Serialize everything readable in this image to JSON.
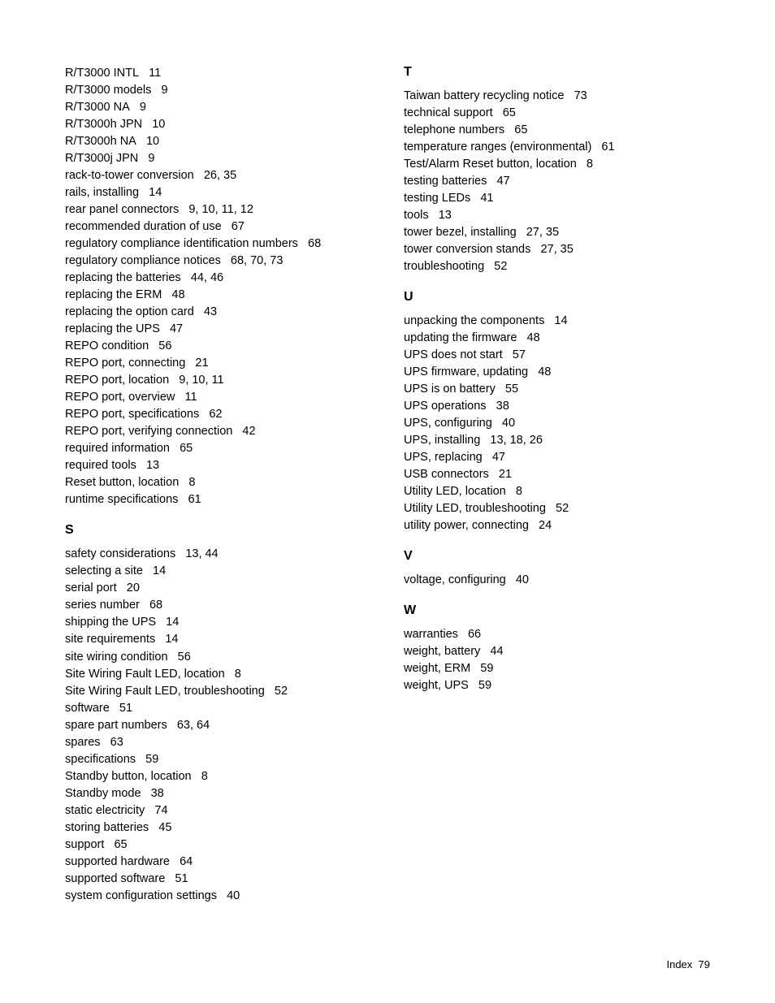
{
  "left": {
    "r_entries": [
      {
        "term": "R/T3000 INTL",
        "pages": "11"
      },
      {
        "term": "R/T3000 models",
        "pages": "9"
      },
      {
        "term": "R/T3000 NA",
        "pages": "9"
      },
      {
        "term": "R/T3000h JPN",
        "pages": "10"
      },
      {
        "term": "R/T3000h NA",
        "pages": "10"
      },
      {
        "term": "R/T3000j JPN",
        "pages": "9"
      },
      {
        "term": "rack-to-tower conversion",
        "pages": "26, 35"
      },
      {
        "term": "rails, installing",
        "pages": "14"
      },
      {
        "term": "rear panel connectors",
        "pages": "9, 10, 11, 12"
      },
      {
        "term": "recommended duration of use",
        "pages": "67"
      },
      {
        "term": "regulatory compliance identification numbers",
        "pages": "68"
      },
      {
        "term": "regulatory compliance notices",
        "pages": "68, 70, 73"
      },
      {
        "term": "replacing the batteries",
        "pages": "44, 46"
      },
      {
        "term": "replacing the ERM",
        "pages": "48"
      },
      {
        "term": "replacing the option card",
        "pages": "43"
      },
      {
        "term": "replacing the UPS",
        "pages": "47"
      },
      {
        "term": "REPO condition",
        "pages": "56"
      },
      {
        "term": "REPO port, connecting",
        "pages": "21"
      },
      {
        "term": "REPO port, location",
        "pages": "9, 10, 11"
      },
      {
        "term": "REPO port, overview",
        "pages": "11"
      },
      {
        "term": "REPO port, specifications",
        "pages": "62"
      },
      {
        "term": "REPO port, verifying connection",
        "pages": "42"
      },
      {
        "term": "required information",
        "pages": "65"
      },
      {
        "term": "required tools",
        "pages": "13"
      },
      {
        "term": "Reset button, location",
        "pages": "8"
      },
      {
        "term": "runtime specifications",
        "pages": "61"
      }
    ],
    "s_head": "S",
    "s_entries": [
      {
        "term": "safety considerations",
        "pages": "13, 44"
      },
      {
        "term": "selecting a site",
        "pages": "14"
      },
      {
        "term": "serial port",
        "pages": "20"
      },
      {
        "term": "series number",
        "pages": "68"
      },
      {
        "term": "shipping the UPS",
        "pages": "14"
      },
      {
        "term": "site requirements",
        "pages": "14"
      },
      {
        "term": "site wiring condition",
        "pages": "56"
      },
      {
        "term": "Site Wiring Fault LED, location",
        "pages": "8"
      },
      {
        "term": "Site Wiring Fault LED, troubleshooting",
        "pages": "52"
      },
      {
        "term": "software",
        "pages": "51"
      },
      {
        "term": "spare part numbers",
        "pages": "63, 64"
      },
      {
        "term": "spares",
        "pages": "63"
      },
      {
        "term": "specifications",
        "pages": "59"
      },
      {
        "term": "Standby button, location",
        "pages": "8"
      },
      {
        "term": "Standby mode",
        "pages": "38"
      },
      {
        "term": "static electricity",
        "pages": "74"
      },
      {
        "term": "storing batteries",
        "pages": "45"
      },
      {
        "term": "support",
        "pages": "65"
      },
      {
        "term": "supported hardware",
        "pages": "64"
      },
      {
        "term": "supported software",
        "pages": "51"
      },
      {
        "term": "system configuration settings",
        "pages": "40"
      }
    ]
  },
  "right": {
    "t_head": "T",
    "t_entries": [
      {
        "term": "Taiwan battery recycling notice",
        "pages": "73"
      },
      {
        "term": "technical support",
        "pages": "65"
      },
      {
        "term": "telephone numbers",
        "pages": "65"
      },
      {
        "term": "temperature ranges (environmental)",
        "pages": "61"
      },
      {
        "term": "Test/Alarm Reset button, location",
        "pages": "8"
      },
      {
        "term": "testing batteries",
        "pages": "47"
      },
      {
        "term": "testing LEDs",
        "pages": "41"
      },
      {
        "term": "tools",
        "pages": "13"
      },
      {
        "term": "tower bezel, installing",
        "pages": "27, 35"
      },
      {
        "term": "tower conversion stands",
        "pages": "27, 35"
      },
      {
        "term": "troubleshooting",
        "pages": "52"
      }
    ],
    "u_head": "U",
    "u_entries": [
      {
        "term": "unpacking the components",
        "pages": "14"
      },
      {
        "term": "updating the firmware",
        "pages": "48"
      },
      {
        "term": "UPS does not start",
        "pages": "57"
      },
      {
        "term": "UPS firmware, updating",
        "pages": "48"
      },
      {
        "term": "UPS is on battery",
        "pages": "55"
      },
      {
        "term": "UPS operations",
        "pages": "38"
      },
      {
        "term": "UPS, configuring",
        "pages": "40"
      },
      {
        "term": "UPS, installing",
        "pages": "13, 18, 26"
      },
      {
        "term": "UPS, replacing",
        "pages": "47"
      },
      {
        "term": "USB connectors",
        "pages": "21"
      },
      {
        "term": "Utility LED, location",
        "pages": "8"
      },
      {
        "term": "Utility LED, troubleshooting",
        "pages": "52"
      },
      {
        "term": "utility power, connecting",
        "pages": "24"
      }
    ],
    "v_head": "V",
    "v_entries": [
      {
        "term": "voltage, configuring",
        "pages": "40"
      }
    ],
    "w_head": "W",
    "w_entries": [
      {
        "term": "warranties",
        "pages": "66"
      },
      {
        "term": "weight, battery",
        "pages": "44"
      },
      {
        "term": "weight, ERM",
        "pages": "59"
      },
      {
        "term": "weight, UPS",
        "pages": "59"
      }
    ]
  },
  "footer": {
    "label": "Index",
    "page": "79"
  }
}
